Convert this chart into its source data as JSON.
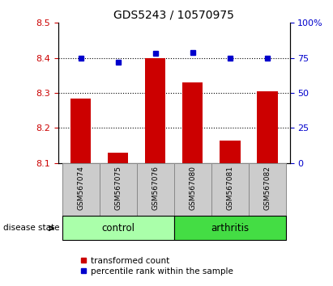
{
  "title": "GDS5243 / 10570975",
  "samples": [
    "GSM567074",
    "GSM567075",
    "GSM567076",
    "GSM567080",
    "GSM567081",
    "GSM567082"
  ],
  "red_values": [
    8.285,
    8.13,
    8.4,
    8.33,
    8.165,
    8.305
  ],
  "blue_values": [
    75,
    72,
    78,
    79,
    75,
    75
  ],
  "ylim_left": [
    8.1,
    8.5
  ],
  "ylim_right": [
    0,
    100
  ],
  "yticks_left": [
    8.1,
    8.2,
    8.3,
    8.4,
    8.5
  ],
  "yticks_right": [
    0,
    25,
    50,
    75,
    100
  ],
  "groups": [
    {
      "label": "control",
      "indices": [
        0,
        1,
        2
      ],
      "color": "#aaffaa"
    },
    {
      "label": "arthritis",
      "indices": [
        3,
        4,
        5
      ],
      "color": "#44dd44"
    }
  ],
  "disease_label": "disease state",
  "legend_red": "transformed count",
  "legend_blue": "percentile rank within the sample",
  "bar_color": "#cc0000",
  "dot_color": "#0000cc",
  "label_color_left": "#cc0000",
  "label_color_right": "#0000cc",
  "bar_bottom": 8.1,
  "sample_box_color": "#cccccc"
}
